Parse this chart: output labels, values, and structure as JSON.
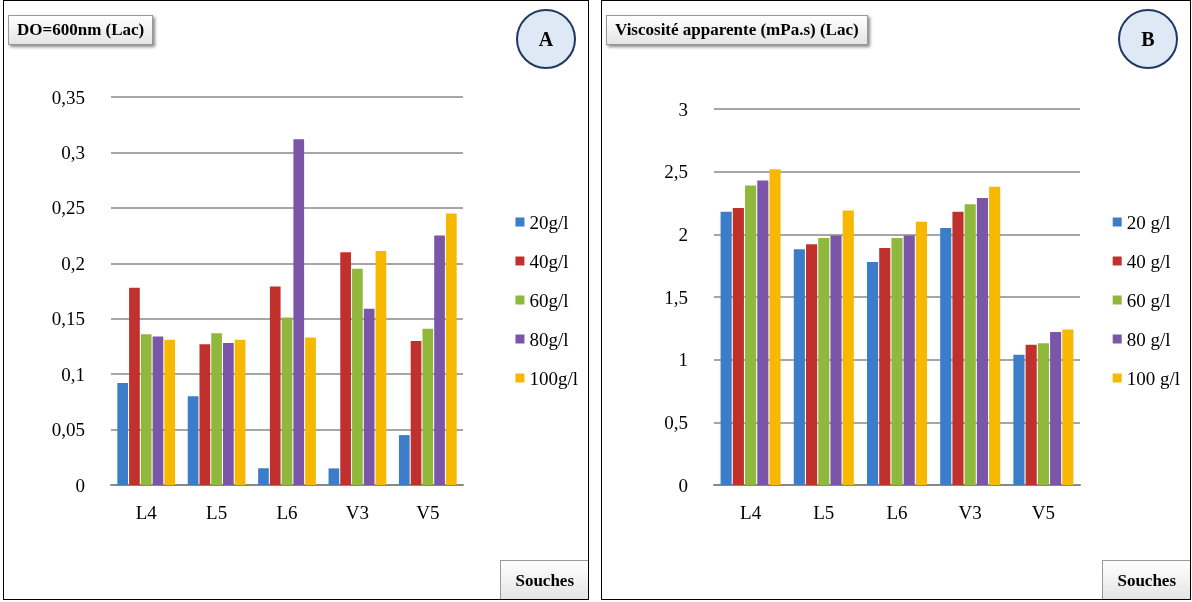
{
  "chart_data": [
    {
      "type": "bar",
      "title": "DO=600nm (Lac)",
      "xlabel": "Souches",
      "annotations": [
        "A"
      ],
      "categories": [
        "L4",
        "L5",
        "L6",
        "V3",
        "V5"
      ],
      "series": [
        {
          "name": "20g/l",
          "color": "#3b7dc8",
          "values": [
            0.092,
            0.08,
            0.015,
            0.015,
            0.045
          ]
        },
        {
          "name": "40g/l",
          "color": "#c0302c",
          "values": [
            0.178,
            0.127,
            0.179,
            0.21,
            0.13
          ]
        },
        {
          "name": "60g/l",
          "color": "#8fb83c",
          "values": [
            0.136,
            0.137,
            0.151,
            0.195,
            0.141
          ]
        },
        {
          "name": "80g/l",
          "color": "#7b56a8",
          "values": [
            0.134,
            0.128,
            0.312,
            0.159,
            0.225
          ]
        },
        {
          "name": "100g/l",
          "color": "#f6b800",
          "values": [
            0.131,
            0.131,
            0.133,
            0.211,
            0.245
          ]
        }
      ],
      "ylim": [
        0,
        0.35
      ],
      "yticks": [
        0,
        {
          "value": 0.05,
          "label": "0,05"
        },
        {
          "value": 0.1,
          "label": "0,1"
        },
        {
          "value": 0.15,
          "label": "0,15"
        },
        {
          "value": 0.2,
          "label": "0,2"
        },
        {
          "value": 0.25,
          "label": "0,25"
        },
        {
          "value": 0.3,
          "label": "0,3"
        },
        {
          "value": 0.35,
          "label": "0,35"
        }
      ],
      "grid": "y",
      "legend": "right"
    },
    {
      "type": "bar",
      "title": "Viscosité apparente (mPa.s) (Lac)",
      "xlabel": "Souches",
      "annotations": [
        "B"
      ],
      "categories": [
        "L4",
        "L5",
        "L6",
        "V3",
        "V5"
      ],
      "series": [
        {
          "name": "20 g/l",
          "color": "#3b7dc8",
          "values": [
            2.18,
            1.88,
            1.78,
            2.05,
            1.04
          ]
        },
        {
          "name": "40 g/l",
          "color": "#c0302c",
          "values": [
            2.21,
            1.92,
            1.89,
            2.18,
            1.12
          ]
        },
        {
          "name": "60 g/l",
          "color": "#8fb83c",
          "values": [
            2.39,
            1.97,
            1.97,
            2.24,
            1.13
          ]
        },
        {
          "name": "80 g/l",
          "color": "#7b56a8",
          "values": [
            2.43,
            1.99,
            1.99,
            2.29,
            1.22
          ]
        },
        {
          "name": "100 g/l",
          "color": "#f6b800",
          "values": [
            2.52,
            2.19,
            2.1,
            2.38,
            1.24
          ]
        }
      ],
      "ylim": [
        0,
        3
      ],
      "yticks": [
        0,
        {
          "value": 0.5,
          "label": "0,5"
        },
        1,
        {
          "value": 1.5,
          "label": "1,5"
        },
        2,
        {
          "value": 2.5,
          "label": "2,5"
        },
        3
      ],
      "grid": "y",
      "legend": "right"
    }
  ]
}
